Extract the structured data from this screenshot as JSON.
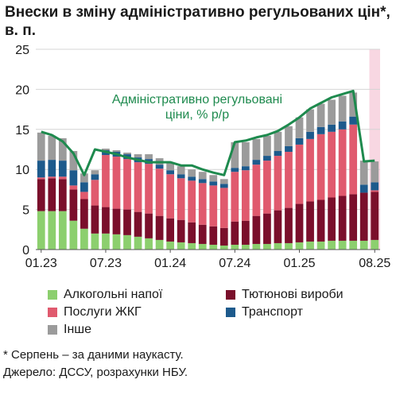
{
  "title": "Внески в зміну адміністративно регульованих цін*, в. п.",
  "colors": {
    "alcohol": "#8ccf6e",
    "tobacco": "#7a0f2b",
    "housing": "#e05a6e",
    "transport": "#1d5a8c",
    "other": "#9b9b9b",
    "total_line": "#1e8a4e",
    "forecast_band": "#f8d7e2",
    "grid": "#d4d4d4"
  },
  "legend": [
    {
      "key": "alcohol",
      "label": "Алкогольні напої"
    },
    {
      "key": "tobacco",
      "label": "Тютюнові вироби"
    },
    {
      "key": "housing",
      "label": "Послуги ЖКГ"
    },
    {
      "key": "transport",
      "label": "Транспорт"
    },
    {
      "key": "other",
      "label": "Інше"
    }
  ],
  "footnote": {
    "line1": "* Серпень – за даними наукасту.",
    "line2": "Джерело: ДССУ, розрахунки НБУ."
  },
  "chart_data": {
    "type": "bar",
    "stacked": true,
    "ylim": [
      0,
      25
    ],
    "yticks": [
      0,
      5,
      10,
      15,
      20,
      25
    ],
    "xtick_labels": [
      {
        "label": "01.23",
        "index": 0
      },
      {
        "label": "07.23",
        "index": 6
      },
      {
        "label": "01.24",
        "index": 12
      },
      {
        "label": "07.24",
        "index": 18
      },
      {
        "label": "01.25",
        "index": 24
      },
      {
        "label": "08.25",
        "index": 31
      }
    ],
    "categories": [
      "01.23",
      "02.23",
      "03.23",
      "04.23",
      "05.23",
      "06.23",
      "07.23",
      "08.23",
      "09.23",
      "10.23",
      "11.23",
      "12.23",
      "01.24",
      "02.24",
      "03.24",
      "04.24",
      "05.24",
      "06.24",
      "07.24",
      "08.24",
      "09.24",
      "10.24",
      "11.24",
      "12.24",
      "01.25",
      "02.25",
      "03.25",
      "04.25",
      "05.25",
      "06.25",
      "07.25",
      "08.25"
    ],
    "series": [
      {
        "key": "alcohol",
        "name": "Алкогольні напої",
        "values": [
          4.8,
          4.8,
          4.8,
          3.6,
          2.6,
          2.0,
          2.0,
          1.9,
          1.8,
          1.6,
          1.4,
          1.2,
          1.0,
          0.9,
          0.8,
          0.7,
          0.6,
          0.5,
          0.6,
          0.6,
          0.7,
          0.7,
          0.8,
          0.8,
          0.9,
          1.0,
          1.0,
          1.1,
          1.1,
          1.1,
          1.1,
          1.2
        ]
      },
      {
        "key": "tobacco",
        "name": "Тютюнові вироби",
        "values": [
          4.0,
          4.1,
          4.0,
          3.9,
          3.7,
          3.5,
          3.3,
          3.2,
          3.2,
          3.1,
          3.1,
          3.0,
          2.9,
          2.8,
          2.6,
          2.4,
          2.3,
          2.2,
          2.9,
          3.0,
          3.5,
          3.8,
          4.1,
          4.4,
          4.8,
          5.0,
          5.2,
          5.4,
          5.6,
          5.8,
          6.0,
          6.0
        ]
      },
      {
        "key": "housing",
        "name": "Послуги ЖКГ",
        "values": [
          0.2,
          0.2,
          0.3,
          0.5,
          0.9,
          3.2,
          6.5,
          6.5,
          6.3,
          6.2,
          6.2,
          5.9,
          5.5,
          5.2,
          5.2,
          5.2,
          5.1,
          5.0,
          6.2,
          6.3,
          6.4,
          6.6,
          6.8,
          7.0,
          7.4,
          7.8,
          8.2,
          8.2,
          8.3,
          8.7,
          0.0,
          0.2
        ]
      },
      {
        "key": "transport",
        "name": "Транспорт",
        "values": [
          2.1,
          2.1,
          2.0,
          1.9,
          1.2,
          0.7,
          0.6,
          0.6,
          0.6,
          0.6,
          0.6,
          0.5,
          0.5,
          0.5,
          0.5,
          0.5,
          0.5,
          0.5,
          0.5,
          0.5,
          0.6,
          0.6,
          0.6,
          0.7,
          0.8,
          0.9,
          0.9,
          0.9,
          1.0,
          1.0,
          1.0,
          1.0
        ]
      },
      {
        "key": "other",
        "name": "Інше",
        "values": [
          3.5,
          3.0,
          2.8,
          2.4,
          1.1,
          0.5,
          0.2,
          0.2,
          0.2,
          0.4,
          0.6,
          0.8,
          0.9,
          1.0,
          0.9,
          0.9,
          0.8,
          0.6,
          3.2,
          3.0,
          2.6,
          2.5,
          2.4,
          2.5,
          2.6,
          2.8,
          2.9,
          3.1,
          3.2,
          3.0,
          3.0,
          2.6
        ]
      }
    ],
    "total_line": {
      "label_line1": "Адміністративно регульовані",
      "label_line2": "ціни, % р/р",
      "values": [
        14.7,
        14.3,
        13.5,
        12.0,
        9.3,
        12.5,
        12.2,
        11.9,
        11.5,
        11.2,
        10.9,
        10.9,
        10.9,
        10.5,
        10.5,
        10.0,
        9.6,
        9.3,
        13.4,
        13.6,
        14.0,
        14.3,
        14.8,
        15.6,
        16.5,
        17.6,
        18.3,
        19.0,
        19.4,
        19.8,
        11.0,
        11.1
      ]
    },
    "forecast_index": 31,
    "grid": true
  }
}
